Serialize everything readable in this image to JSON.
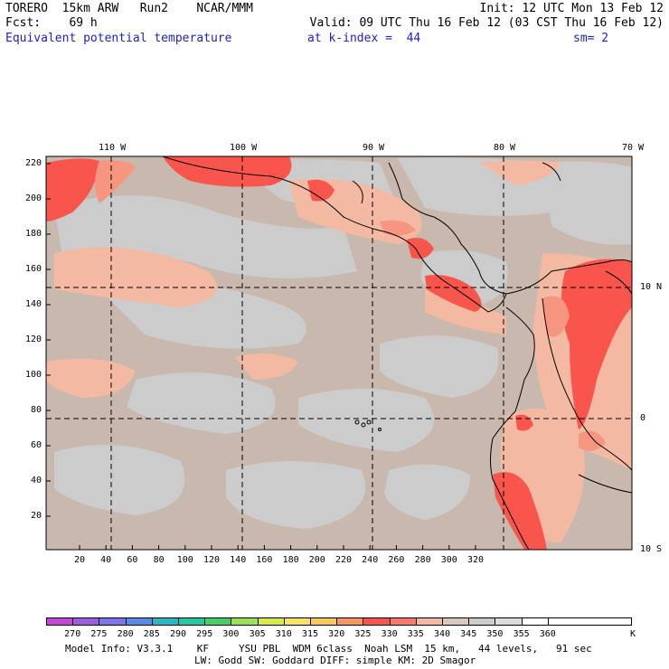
{
  "header": {
    "line1_left": "TORERO  15km ARW   Run2    NCAR/MMM",
    "line1_right": "Init: 12 UTC Mon 13 Feb 12",
    "line2_left": "Fcst:    69 h",
    "line2_right": "Valid: 09 UTC Thu 16 Feb 12 (03 CST Thu 16 Feb 12)",
    "line3_field": "Equivalent potential temperature",
    "line3_level": "at k-index =  44",
    "line3_smooth": "sm= 2"
  },
  "map": {
    "top_lon_labels": [
      "110 W",
      "100 W",
      "90 W",
      "80 W",
      "70 W"
    ],
    "right_lat_labels": [
      "10 N",
      "0",
      "10 S"
    ],
    "y_ticks": [
      "220",
      "200",
      "180",
      "160",
      "140",
      "120",
      "100",
      "80",
      "60",
      "40",
      "20"
    ],
    "x_ticks": [
      "20",
      "40",
      "60",
      "80",
      "100",
      "120",
      "140",
      "160",
      "180",
      "200",
      "220",
      "240",
      "260",
      "280",
      "300",
      "320"
    ],
    "colors": {
      "background": "#c8b8ae",
      "gray": "#cccccc",
      "salmon": "#f4b9a2",
      "light_red": "#f79680",
      "red": "#f8564c",
      "land_line": "#000000"
    }
  },
  "colorbar": {
    "labels": [
      "270",
      "275",
      "280",
      "285",
      "290",
      "295",
      "300",
      "305",
      "310",
      "315",
      "320",
      "325",
      "330",
      "335",
      "340",
      "345",
      "350",
      "355",
      "360"
    ],
    "unit": "K",
    "colors": [
      "#c447d6",
      "#9a5fdc",
      "#7b75ea",
      "#5a8ae8",
      "#2bb8c4",
      "#25c8a0",
      "#46cf64",
      "#9ae05a",
      "#d8ea4a",
      "#f8e464",
      "#f8c860",
      "#f89660",
      "#f8564c",
      "#f87a6a",
      "#f4b9a2",
      "#d8c8c0",
      "#cccccc",
      "#dcdcdc",
      "#ffffff"
    ]
  },
  "footer": {
    "line1": "Model Info: V3.3.1    KF     YSU PBL  WDM 6class  Noah LSM  15 km,   44 levels,   91 sec",
    "line2": "LW: Godd SW: Goddard DIFF: simple KM: 2D Smagor"
  }
}
